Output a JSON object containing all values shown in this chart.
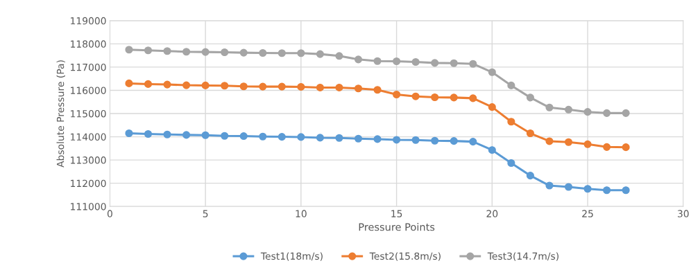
{
  "chart_data": {
    "type": "line",
    "xlabel": "Pressure Points",
    "ylabel": "Absolute Pressure (Pa)",
    "x": [
      1,
      2,
      3,
      4,
      5,
      6,
      7,
      8,
      9,
      10,
      11,
      12,
      13,
      14,
      15,
      16,
      17,
      18,
      19,
      20,
      21,
      22,
      23,
      24,
      25,
      26,
      27
    ],
    "series": [
      {
        "name": "Test1(18m/s)",
        "color": "#5b9bd5",
        "values": [
          114150,
          114120,
          114100,
          114080,
          114070,
          114040,
          114030,
          114010,
          114000,
          113990,
          113960,
          113950,
          113920,
          113900,
          113870,
          113860,
          113830,
          113820,
          113790,
          113430,
          112870,
          112330,
          111900,
          111840,
          111760,
          111700,
          111700
        ]
      },
      {
        "name": "Test2(15.8m/s)",
        "color": "#ed7d31",
        "values": [
          116300,
          116270,
          116250,
          116220,
          116210,
          116200,
          116170,
          116160,
          116160,
          116150,
          116120,
          116120,
          116080,
          116020,
          115820,
          115740,
          115700,
          115690,
          115660,
          115280,
          114650,
          114150,
          113810,
          113770,
          113680,
          113560,
          113550
        ]
      },
      {
        "name": "Test3(14.7m/s)",
        "color": "#a5a5a5",
        "values": [
          117750,
          117720,
          117690,
          117660,
          117650,
          117640,
          117620,
          117610,
          117600,
          117600,
          117560,
          117480,
          117330,
          117260,
          117250,
          117220,
          117180,
          117170,
          117140,
          116780,
          116210,
          115690,
          115260,
          115170,
          115070,
          115020,
          115020
        ]
      }
    ],
    "xlim": [
      0,
      30
    ],
    "xticks": [
      0,
      5,
      10,
      15,
      20,
      25,
      30
    ],
    "ylim": [
      111000,
      119000
    ],
    "yticks": [
      111000,
      112000,
      113000,
      114000,
      115000,
      116000,
      117000,
      118000,
      119000
    ],
    "grid": true,
    "legend": "bottom",
    "marker": "circle",
    "line_style": "solid"
  }
}
